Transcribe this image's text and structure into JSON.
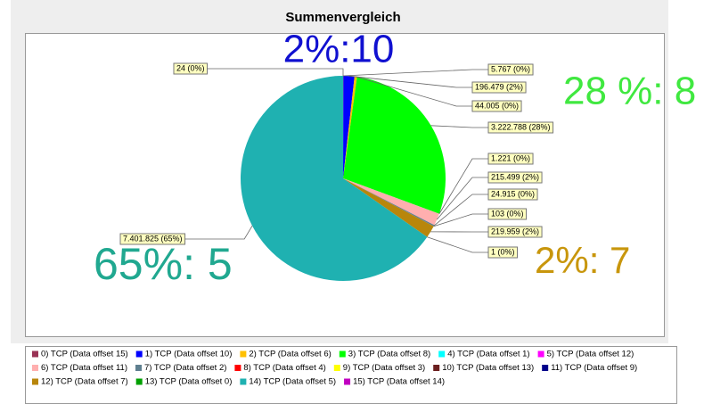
{
  "chart_data": {
    "type": "pie",
    "title": "Summenvergleich",
    "categories": [
      "0) TCP (Data offset 15)",
      "1) TCP (Data offset 10)",
      "2) TCP (Data offset 6)",
      "3) TCP (Data offset 8)",
      "4) TCP (Data offset 1)",
      "5) TCP (Data offset 12)",
      "6) TCP (Data offset 11)",
      "7) TCP (Data offset 2)",
      "8) TCP (Data offset 4)",
      "9) TCP (Data offset 3)",
      "10) TCP (Data offset 13)",
      "11) TCP (Data offset 9)",
      "12) TCP (Data offset 7)",
      "13) TCP (Data offset 0)",
      "14) TCP (Data offset 5)",
      "15) TCP (Data offset 14)"
    ],
    "values": [
      5767,
      196479,
      44005,
      3222788,
      1221,
      0,
      215499,
      24915,
      103,
      0,
      0,
      0,
      219959,
      1,
      7401825,
      24
    ],
    "value_labels": [
      "5.767 (0%)",
      "196.479 (2%)",
      "44.005 (0%)",
      "3.222.788 (28%)",
      "1.221 (0%)",
      null,
      "215.499 (2%)",
      "24.915 (0%)",
      "103 (0%)",
      null,
      null,
      null,
      "219.959 (2%)",
      "1 (0%)",
      "7.401.825 (65%)",
      "24 (0%)"
    ],
    "colors": [
      "#993355",
      "#0000ff",
      "#ffc000",
      "#00ff00",
      "#00ffff",
      "#ff00ff",
      "#ffafaf",
      "#5f7f8f",
      "#ff0000",
      "#ffff00",
      "#6b1f1f",
      "#00008b",
      "#b8860b",
      "#00a000",
      "#1fb1b1",
      "#c000c0"
    ],
    "annotations": [
      {
        "text": "2%:10",
        "color": "#1010d0"
      },
      {
        "text": "28 %: 8",
        "color": "#40e840"
      },
      {
        "text": "65%: 5",
        "color": "#20a890"
      },
      {
        "text": "2%: 7",
        "color": "#c8960c"
      }
    ]
  }
}
